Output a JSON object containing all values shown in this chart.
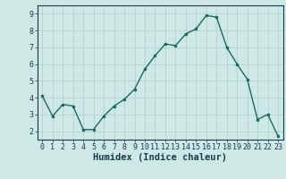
{
  "x": [
    0,
    1,
    2,
    3,
    4,
    5,
    6,
    7,
    8,
    9,
    10,
    11,
    12,
    13,
    14,
    15,
    16,
    17,
    18,
    19,
    20,
    21,
    22,
    23
  ],
  "y": [
    4.1,
    2.9,
    3.6,
    3.5,
    2.1,
    2.1,
    2.9,
    3.5,
    3.9,
    4.5,
    5.7,
    6.5,
    7.2,
    7.1,
    7.8,
    8.1,
    8.9,
    8.8,
    7.0,
    6.0,
    5.1,
    2.7,
    3.0,
    1.7
  ],
  "line_color": "#1a6b5e",
  "marker": ".",
  "marker_size": 3.5,
  "bg_color": "#cde8e5",
  "grid_color": "#b0ceca",
  "xlabel": "Humidex (Indice chaleur)",
  "xlabel_color": "#1a3a50",
  "ylim": [
    1.5,
    9.5
  ],
  "xlim": [
    -0.5,
    23.5
  ],
  "yticks": [
    2,
    3,
    4,
    5,
    6,
    7,
    8,
    9
  ],
  "xticks": [
    0,
    1,
    2,
    3,
    4,
    5,
    6,
    7,
    8,
    9,
    10,
    11,
    12,
    13,
    14,
    15,
    16,
    17,
    18,
    19,
    20,
    21,
    22,
    23
  ],
  "tick_color": "#1a3a50",
  "axis_color": "#1a3a50",
  "font_size_label": 7.5,
  "font_size_tick": 6,
  "line_width": 1.0
}
